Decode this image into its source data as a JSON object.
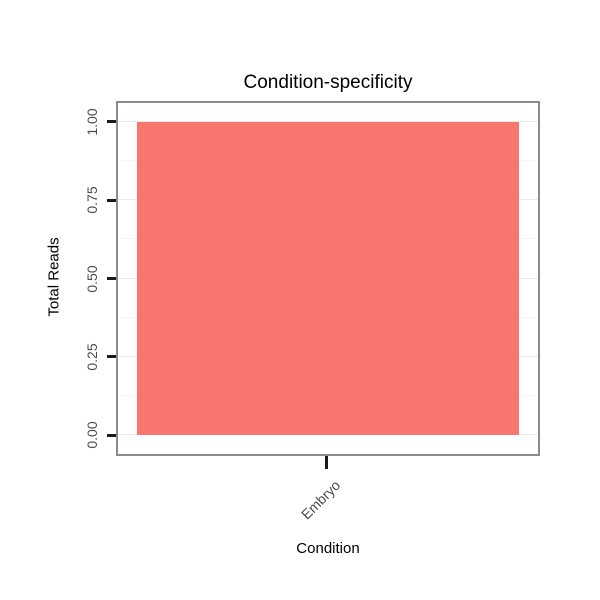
{
  "chart_data": {
    "type": "bar",
    "title": "Condition-specificity",
    "xlabel": "Condition",
    "ylabel": "Total Reads",
    "categories": [
      "Embryo"
    ],
    "values": [
      1.0
    ],
    "ylim": [
      0,
      1.0
    ],
    "yticks": [
      "0.00",
      "0.25",
      "0.50",
      "0.75",
      "1.00"
    ],
    "grid": true,
    "legend": "none",
    "bar_color": "#F8766D",
    "panel_border_color": "#8B8B8B",
    "gridline_major_color": "#EBEBEB",
    "gridline_minor_color": "#F6F6F6",
    "axis_text_color": "#4D4D4D",
    "tick_mark_color": "#1A1A1A"
  }
}
